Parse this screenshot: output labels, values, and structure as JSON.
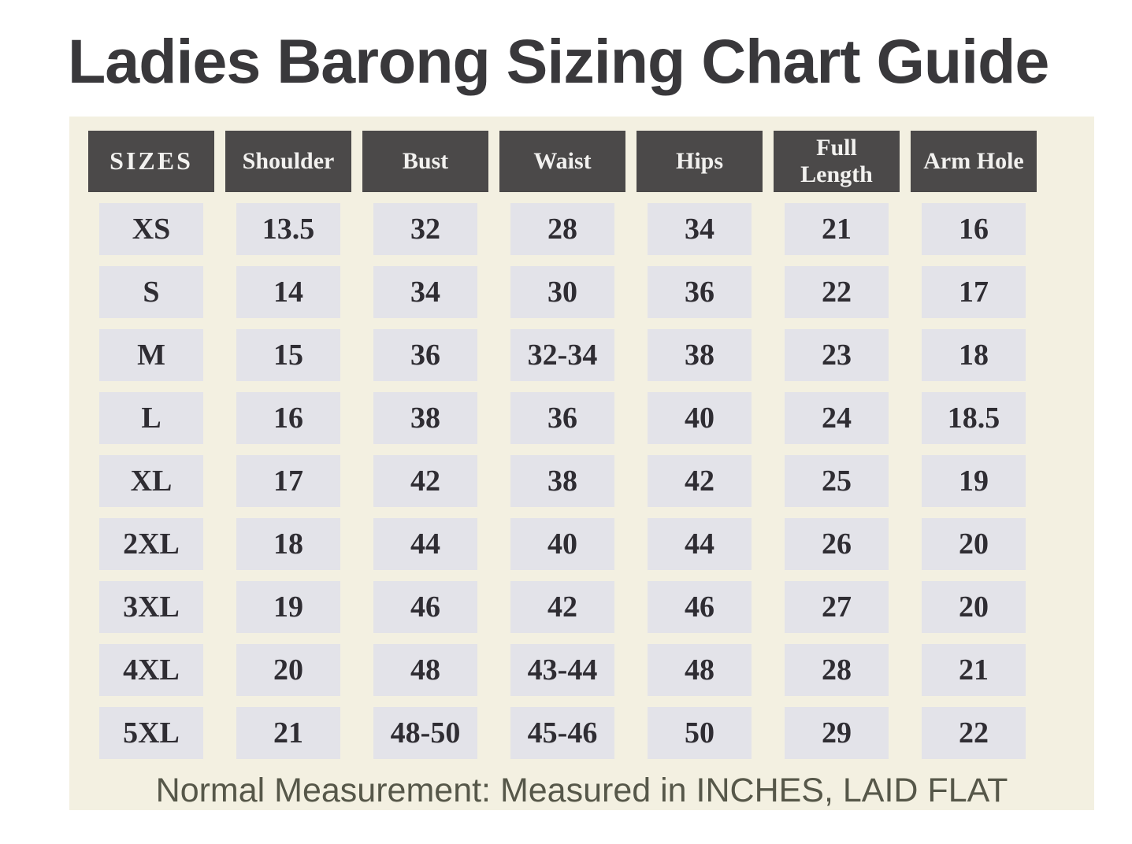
{
  "title": "Ladies Barong Sizing Chart Guide",
  "footer_note": "Normal Measurement: Measured in INCHES, LAID FLAT",
  "colors": {
    "page_background": "#ffffff",
    "panel_background": "#f3f0e1",
    "header_cell_background": "#4b4949",
    "header_cell_text": "#f2f1ef",
    "data_cell_background": "#e3e3e9",
    "data_cell_text": "#2f2d33",
    "title_text": "#39383b",
    "footer_text": "#565749"
  },
  "chart_data": {
    "type": "table",
    "title": "Ladies Barong Sizing Chart Guide",
    "units": "inches",
    "columns": [
      "SIZES",
      "Shoulder",
      "Bust",
      "Waist",
      "Hips",
      "Full Length",
      "Arm Hole"
    ],
    "rows": [
      [
        "XS",
        "13.5",
        "32",
        "28",
        "34",
        "21",
        "16"
      ],
      [
        "S",
        "14",
        "34",
        "30",
        "36",
        "22",
        "17"
      ],
      [
        "M",
        "15",
        "36",
        "32-34",
        "38",
        "23",
        "18"
      ],
      [
        "L",
        "16",
        "38",
        "36",
        "40",
        "24",
        "18.5"
      ],
      [
        "XL",
        "17",
        "42",
        "38",
        "42",
        "25",
        "19"
      ],
      [
        "2XL",
        "18",
        "44",
        "40",
        "44",
        "26",
        "20"
      ],
      [
        "3XL",
        "19",
        "46",
        "42",
        "46",
        "27",
        "20"
      ],
      [
        "4XL",
        "20",
        "48",
        "43-44",
        "48",
        "28",
        "21"
      ],
      [
        "5XL",
        "21",
        "48-50",
        "45-46",
        "50",
        "29",
        "22"
      ]
    ],
    "note": "Normal Measurement: Measured in INCHES, LAID FLAT"
  }
}
